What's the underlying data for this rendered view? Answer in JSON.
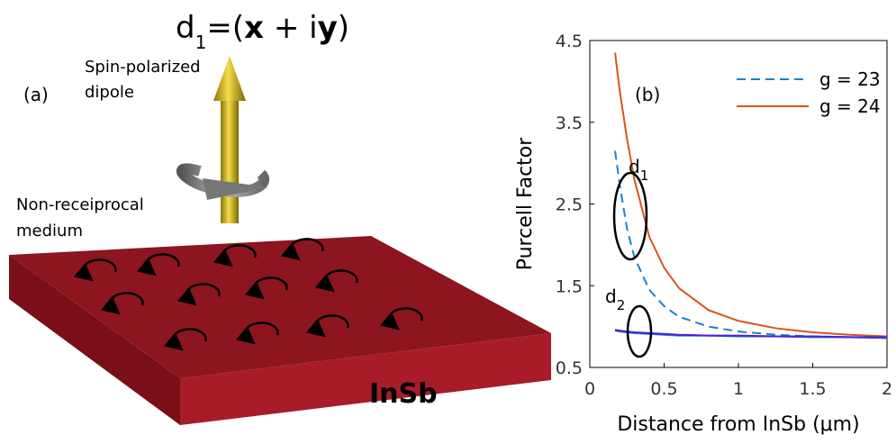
{
  "diagram": {
    "title": [
      "d",
      "1",
      "=(",
      "x",
      " + i",
      "y",
      ")"
    ],
    "dipole_label": [
      "Spin-polarized",
      "dipole"
    ],
    "panel": "(a)",
    "medium_label": [
      "Non-receiprocal",
      "medium"
    ],
    "material": "InSb"
  },
  "chart_data": {
    "type": "line",
    "panel": "(b)",
    "xlabel": "Distance from InSb (μm)",
    "ylabel": "Purcell Factor",
    "x": [
      0.17,
      0.2,
      0.25,
      0.3,
      0.4,
      0.5,
      0.6,
      0.8,
      1.0,
      1.25,
      1.5,
      1.75,
      2.0
    ],
    "series": [
      {
        "name": "g = 23",
        "color": "#1f7fc4",
        "dash": true,
        "values": [
          3.15,
          2.75,
          2.2,
          1.85,
          1.45,
          1.25,
          1.12,
          1.0,
          0.94,
          0.9,
          0.88,
          0.87,
          0.86
        ]
      },
      {
        "name": "g = 24",
        "color": "#d9541a",
        "dash": false,
        "values": [
          4.35,
          3.9,
          3.3,
          2.8,
          2.1,
          1.72,
          1.47,
          1.2,
          1.07,
          0.98,
          0.93,
          0.9,
          0.88
        ]
      },
      {
        "color": "#1f7fc4",
        "dash": false,
        "values": [
          0.95,
          0.94,
          0.93,
          0.92,
          0.91,
          0.9,
          0.89,
          0.89,
          0.88,
          0.88,
          0.87,
          0.87,
          0.86
        ]
      },
      {
        "color": "#4b1fd6",
        "dash": false,
        "values": [
          0.96,
          0.95,
          0.94,
          0.93,
          0.92,
          0.91,
          0.9,
          0.89,
          0.89,
          0.88,
          0.88,
          0.87,
          0.87
        ]
      }
    ],
    "annotations": [
      {
        "text": "d",
        "subscript": "1"
      },
      {
        "text": "d",
        "subscript": "2"
      }
    ],
    "xlim": [
      0,
      2
    ],
    "ylim": [
      0.5,
      4.5
    ],
    "xticks": [
      0,
      0.5,
      1,
      1.5,
      2
    ],
    "yticks": [
      0.5,
      1.5,
      2.5,
      3.5,
      4.5
    ],
    "legend": "upper right",
    "grid": false
  }
}
